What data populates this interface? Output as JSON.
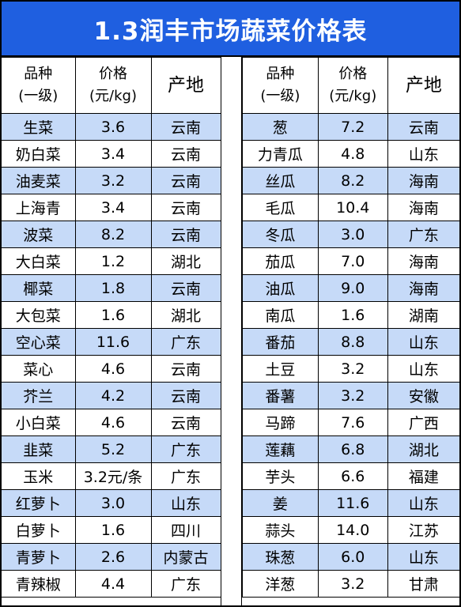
{
  "title": "1.3润丰市场蔬菜价格表",
  "headers": {
    "name_line1": "品种",
    "name_line2": "(一级)",
    "price_line1": "价格",
    "price_line2": "(元/kg)",
    "origin": "产地"
  },
  "left_rows": [
    {
      "name": "生菜",
      "price": "3.6",
      "origin": "云南"
    },
    {
      "name": "奶白菜",
      "price": "3.4",
      "origin": "云南"
    },
    {
      "name": "油麦菜",
      "price": "3.2",
      "origin": "云南"
    },
    {
      "name": "上海青",
      "price": "3.4",
      "origin": "云南"
    },
    {
      "name": "波菜",
      "price": "8.2",
      "origin": "云南"
    },
    {
      "name": "大白菜",
      "price": "1.2",
      "origin": "湖北"
    },
    {
      "name": "椰菜",
      "price": "1.8",
      "origin": "云南"
    },
    {
      "name": "大包菜",
      "price": "1.6",
      "origin": "湖北"
    },
    {
      "name": "空心菜",
      "price": "11.6",
      "origin": "广东"
    },
    {
      "name": "菜心",
      "price": "4.6",
      "origin": "云南"
    },
    {
      "name": "芥兰",
      "price": "4.2",
      "origin": "云南"
    },
    {
      "name": "小白菜",
      "price": "4.6",
      "origin": "云南"
    },
    {
      "name": "韭菜",
      "price": "5.2",
      "origin": "广东"
    },
    {
      "name": "玉米",
      "price": "3.2元/条",
      "origin": "广东"
    },
    {
      "name": "红萝卜",
      "price": "3.0",
      "origin": "山东"
    },
    {
      "name": "白萝卜",
      "price": "1.6",
      "origin": "四川"
    },
    {
      "name": "青萝卜",
      "price": "2.6",
      "origin": "内蒙古"
    },
    {
      "name": "青辣椒",
      "price": "4.4",
      "origin": "广东"
    }
  ],
  "right_rows": [
    {
      "name": "葱",
      "price": "7.2",
      "origin": "云南"
    },
    {
      "name": "力青瓜",
      "price": "4.8",
      "origin": "山东"
    },
    {
      "name": "丝瓜",
      "price": "8.2",
      "origin": "海南"
    },
    {
      "name": "毛瓜",
      "price": "10.4",
      "origin": "海南"
    },
    {
      "name": "冬瓜",
      "price": "3.0",
      "origin": "广东"
    },
    {
      "name": "茄瓜",
      "price": "7.0",
      "origin": "海南"
    },
    {
      "name": "油瓜",
      "price": "9.0",
      "origin": "海南"
    },
    {
      "name": "南瓜",
      "price": "1.6",
      "origin": "湖南"
    },
    {
      "name": "番茄",
      "price": "8.8",
      "origin": "山东"
    },
    {
      "name": "土豆",
      "price": "3.2",
      "origin": "山东"
    },
    {
      "name": "番薯",
      "price": "3.2",
      "origin": "安徽"
    },
    {
      "name": "马蹄",
      "price": "7.6",
      "origin": "广西"
    },
    {
      "name": "莲藕",
      "price": "6.8",
      "origin": "湖北"
    },
    {
      "name": "芋头",
      "price": "6.6",
      "origin": "福建"
    },
    {
      "name": "姜",
      "price": "11.6",
      "origin": "山东"
    },
    {
      "name": "蒜头",
      "price": "14.0",
      "origin": "江苏"
    },
    {
      "name": "珠葱",
      "price": "6.0",
      "origin": "山东"
    },
    {
      "name": "洋葱",
      "price": "3.2",
      "origin": "甘肃"
    }
  ],
  "colors": {
    "title_bg": "#1f5fe0",
    "title_text": "#ffffff",
    "row_highlight": "#c6daf8",
    "row_plain": "#ffffff"
  }
}
